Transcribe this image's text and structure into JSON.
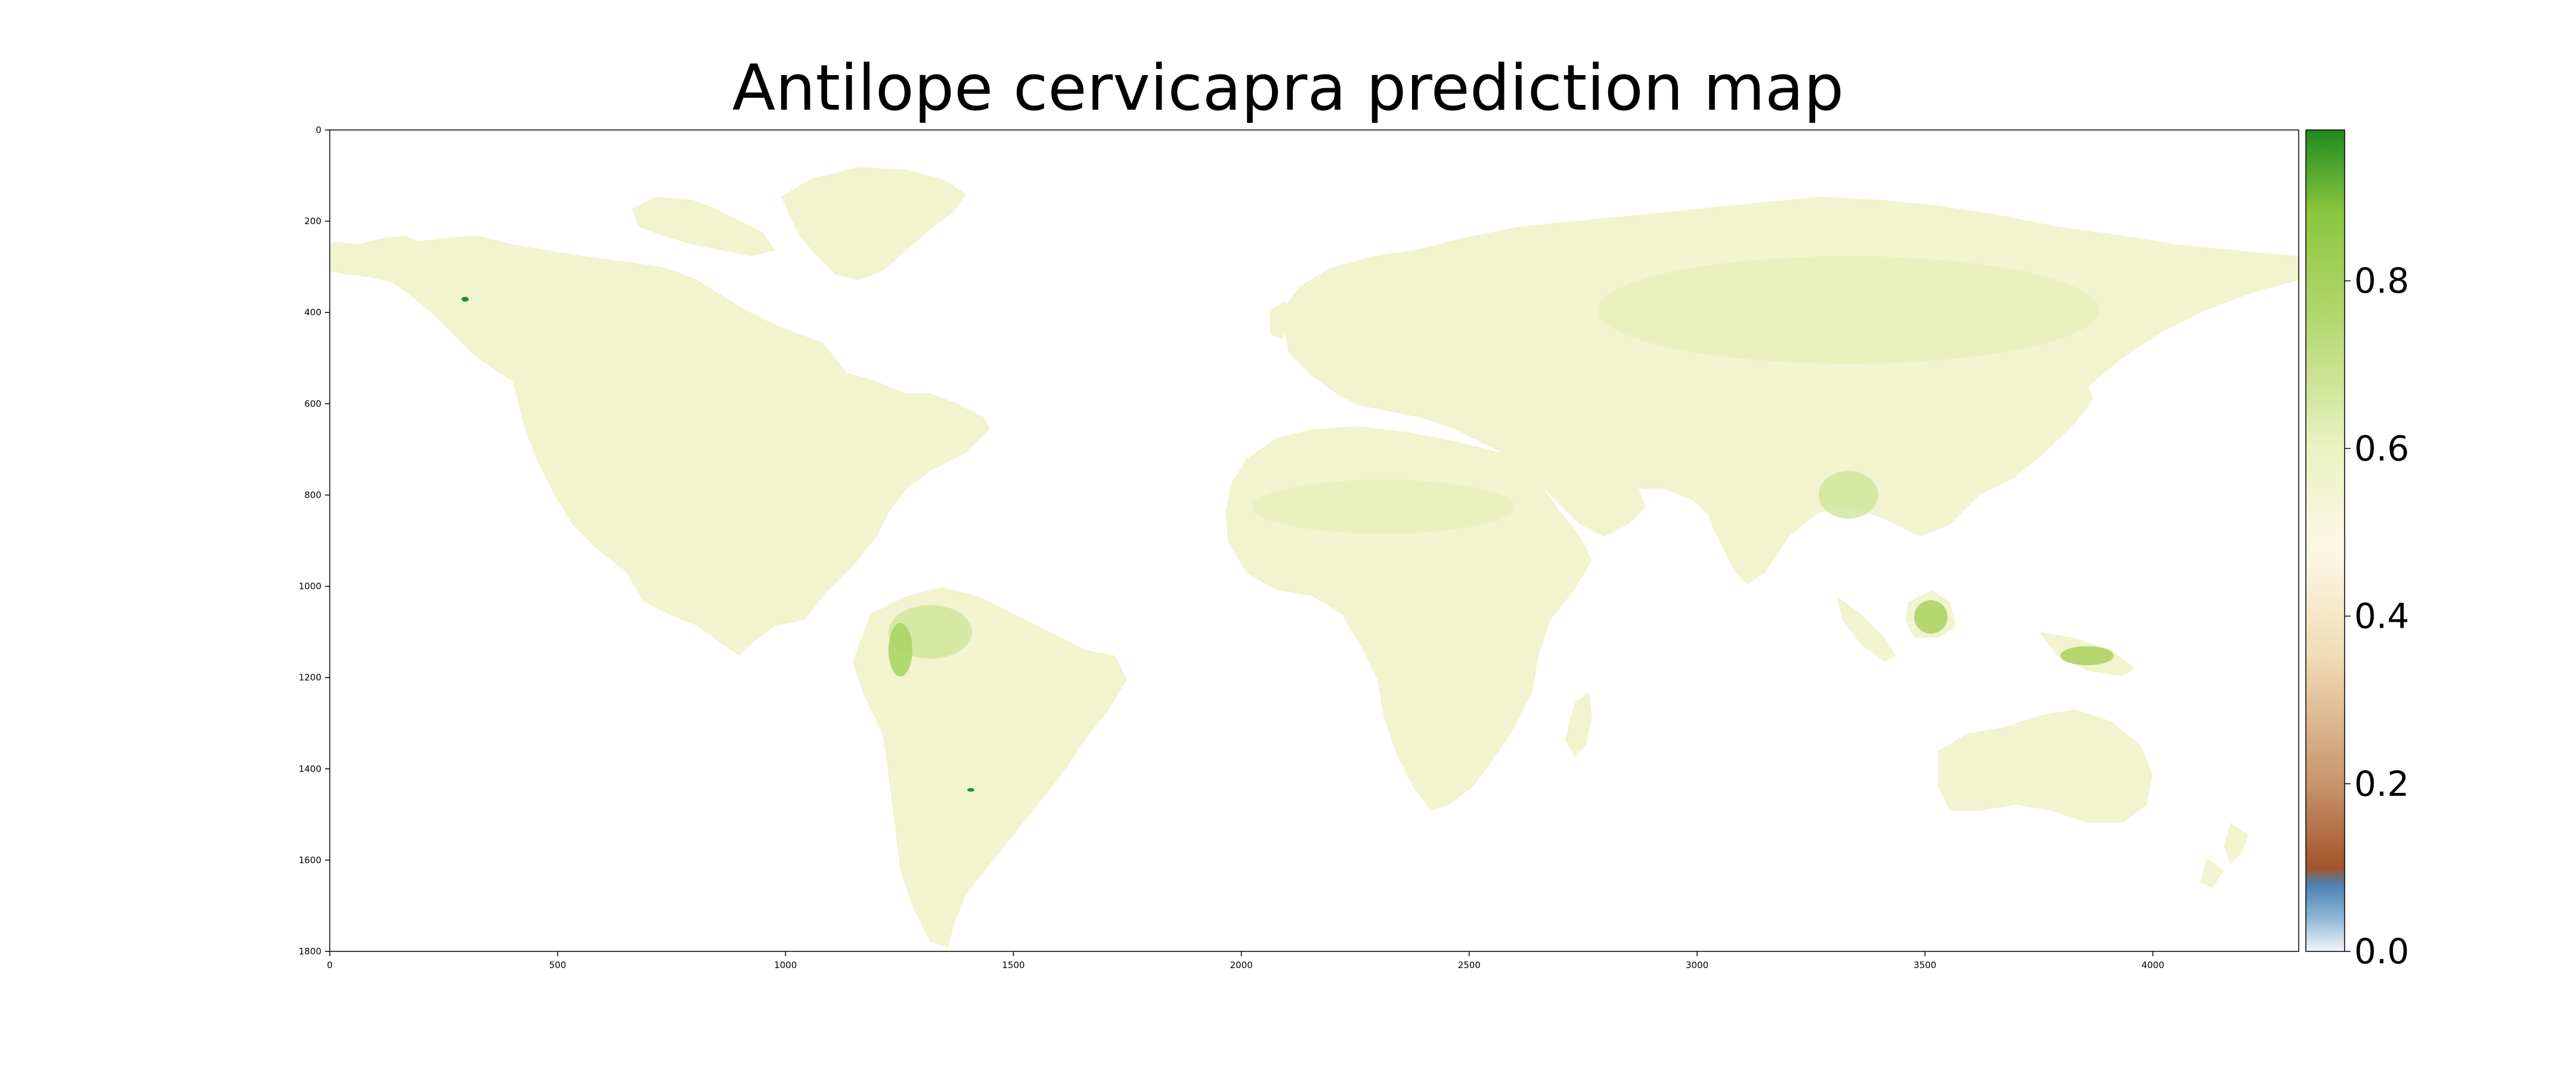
{
  "title": "Antilope cervicapra prediction map",
  "map": {
    "x_ticks": [
      "0",
      "500",
      "1000",
      "1500",
      "2000",
      "2500",
      "3000",
      "3500",
      "4000"
    ],
    "y_ticks": [
      "0",
      "200",
      "400",
      "600",
      "800",
      "1000",
      "1200",
      "1400",
      "1600",
      "1800"
    ],
    "x_range": [
      0,
      4320
    ],
    "y_range": [
      0,
      1800
    ]
  },
  "colorbar": {
    "ticks": [
      "0.0",
      "0.2",
      "0.4",
      "0.6",
      "0.8"
    ],
    "range": [
      0,
      0.98
    ],
    "colors": {
      "0.00": "#f4f6fa",
      "0.04": "#8fb5d6",
      "0.08": "#4a7fb0",
      "0.10": "#a4542a",
      "0.20": "#c8946b",
      "0.35": "#f0dbb4",
      "0.48": "#fdf8e6",
      "0.60": "#eaf2c2",
      "0.75": "#b4d870",
      "0.88": "#8cc63f",
      "0.98": "#1f8a1f"
    }
  },
  "land_colors": {
    "base": "#f2f3cf",
    "mid": "#e6f0b8",
    "rich": "#cfe59a",
    "hot": "#a8d25f",
    "peak": "#2e8b2e"
  }
}
